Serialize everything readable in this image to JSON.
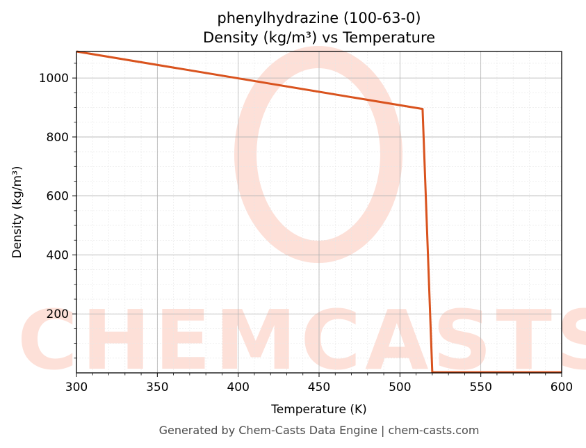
{
  "chart_data": {
    "type": "line",
    "title": "phenylhydrazine (100-63-0)",
    "subtitle": "Density (kg/m³) vs Temperature",
    "xlabel": "Temperature (K)",
    "ylabel": "Density (kg/m³)",
    "xlim": [
      300,
      600
    ],
    "ylim": [
      0,
      1090
    ],
    "xticks": [
      300,
      350,
      400,
      450,
      500,
      550,
      600
    ],
    "yticks": [
      200,
      400,
      600,
      800,
      1000
    ],
    "grid": true,
    "series": [
      {
        "color": "#d9531e",
        "x": [
          300,
          514,
          520,
          600
        ],
        "y": [
          1090,
          895,
          2,
          2
        ]
      }
    ]
  },
  "watermark": "CHEMCASTS",
  "footer": "Generated by Chem-Casts Data Engine | chem-casts.com"
}
